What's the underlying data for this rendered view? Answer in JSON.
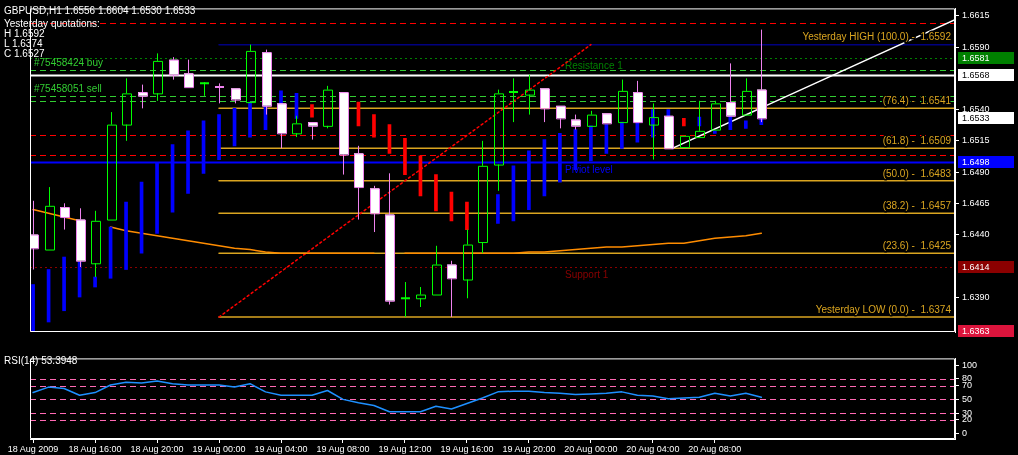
{
  "chart_data": [
    {
      "type": "candlestick",
      "title": "GBPUSD,H1  1.6556 1.6604 1.6530 1.6533",
      "x": [
        "2009-08-18T12:00",
        "2009-08-18T13:00",
        "2009-08-18T14:00",
        "2009-08-18T15:00",
        "2009-08-18T16:00",
        "2009-08-18T17:00",
        "2009-08-18T18:00",
        "2009-08-18T19:00",
        "2009-08-18T20:00",
        "2009-08-18T21:00",
        "2009-08-18T22:00",
        "2009-08-18T23:00",
        "2009-08-19T00:00",
        "2009-08-19T01:00",
        "2009-08-19T02:00",
        "2009-08-19T03:00",
        "2009-08-19T04:00",
        "2009-08-19T05:00",
        "2009-08-19T06:00",
        "2009-08-19T07:00",
        "2009-08-19T08:00",
        "2009-08-19T09:00",
        "2009-08-19T10:00",
        "2009-08-19T11:00",
        "2009-08-19T12:00",
        "2009-08-19T13:00",
        "2009-08-19T14:00",
        "2009-08-19T15:00",
        "2009-08-19T16:00",
        "2009-08-19T17:00",
        "2009-08-19T18:00",
        "2009-08-19T19:00",
        "2009-08-19T20:00",
        "2009-08-19T21:00",
        "2009-08-19T22:00",
        "2009-08-19T23:00",
        "2009-08-20T00:00",
        "2009-08-20T01:00",
        "2009-08-20T02:00",
        "2009-08-20T03:00",
        "2009-08-20T04:00",
        "2009-08-20T05:00",
        "2009-08-20T06:00",
        "2009-08-20T07:00",
        "2009-08-20T08:00",
        "2009-08-20T09:00",
        "2009-08-20T10:00",
        "2009-08-20T11:00"
      ],
      "ohlc": [
        [
          1.644,
          1.6467,
          1.6412,
          1.6429
        ],
        [
          1.6428,
          1.6478,
          1.6428,
          1.6463
        ],
        [
          1.6462,
          1.6465,
          1.6444,
          1.6454
        ],
        [
          1.6452,
          1.6461,
          1.6414,
          1.6419
        ],
        [
          1.6417,
          1.6459,
          1.6406,
          1.6451
        ],
        [
          1.6452,
          1.6538,
          1.6452,
          1.6528
        ],
        [
          1.6528,
          1.6565,
          1.6515,
          1.6553
        ],
        [
          1.6554,
          1.656,
          1.6541,
          1.6551
        ],
        [
          1.6553,
          1.6585,
          1.6547,
          1.6579
        ],
        [
          1.658,
          1.6582,
          1.6564,
          1.6568
        ],
        [
          1.6569,
          1.658,
          1.6558,
          1.6558
        ],
        [
          1.6561,
          1.6562,
          1.6551,
          1.6561
        ],
        [
          1.6558,
          1.6561,
          1.6545,
          1.6558
        ],
        [
          1.6557,
          1.6557,
          1.6545,
          1.6548
        ],
        [
          1.6546,
          1.6592,
          1.6546,
          1.6587
        ],
        [
          1.6586,
          1.6588,
          1.6536,
          1.6543
        ],
        [
          1.6545,
          1.6545,
          1.6509,
          1.6521
        ],
        [
          1.6521,
          1.6535,
          1.6518,
          1.6529
        ],
        [
          1.653,
          1.653,
          1.6516,
          1.6527
        ],
        [
          1.6527,
          1.6559,
          1.6525,
          1.6556
        ],
        [
          1.6554,
          1.6554,
          1.6488,
          1.6504
        ],
        [
          1.6505,
          1.6511,
          1.6452,
          1.6478
        ],
        [
          1.6477,
          1.6479,
          1.6442,
          1.6457
        ],
        [
          1.6456,
          1.6489,
          1.6384,
          1.6387
        ],
        [
          1.6389,
          1.6402,
          1.6374,
          1.6389
        ],
        [
          1.6389,
          1.6398,
          1.6382,
          1.6392
        ],
        [
          1.6392,
          1.6431,
          1.6392,
          1.6416
        ],
        [
          1.6416,
          1.6419,
          1.6374,
          1.6405
        ],
        [
          1.6404,
          1.6444,
          1.6389,
          1.6432
        ],
        [
          1.6434,
          1.6515,
          1.6425,
          1.6495
        ],
        [
          1.6496,
          1.6556,
          1.6475,
          1.6553
        ],
        [
          1.6554,
          1.6565,
          1.653,
          1.6554
        ],
        [
          1.6552,
          1.6568,
          1.6536,
          1.6556
        ],
        [
          1.6557,
          1.6557,
          1.653,
          1.6541
        ],
        [
          1.6543,
          1.6543,
          1.6525,
          1.6533
        ],
        [
          1.6532,
          1.6536,
          1.6524,
          1.6527
        ],
        [
          1.6527,
          1.6539,
          1.6527,
          1.6536
        ],
        [
          1.6537,
          1.6537,
          1.6529,
          1.6529
        ],
        [
          1.653,
          1.6564,
          1.653,
          1.6555
        ],
        [
          1.6554,
          1.6563,
          1.653,
          1.653
        ],
        [
          1.6528,
          1.6545,
          1.65,
          1.6534
        ],
        [
          1.6535,
          1.6535,
          1.6509,
          1.6509
        ],
        [
          1.651,
          1.6519,
          1.651,
          1.6519
        ],
        [
          1.6518,
          1.6547,
          1.6518,
          1.6523
        ],
        [
          1.6524,
          1.6547,
          1.6524,
          1.6545
        ],
        [
          1.6546,
          1.6577,
          1.6535,
          1.6535
        ],
        [
          1.6536,
          1.6565,
          1.6536,
          1.6555
        ],
        [
          1.6556,
          1.6604,
          1.653,
          1.6533
        ]
      ],
      "colors": [
        "#ffffff",
        "#00ff00",
        "#ffffff",
        "#ffffff",
        "#00ff00",
        "#00ff00",
        "#00ff00",
        "#ffffff",
        "#00ff00",
        "#ffffff",
        "#ffffff",
        "#00ff00",
        "#ee82ee",
        "#ffffff",
        "#00ff00",
        "#ffffff",
        "#ffffff",
        "#00ff00",
        "#ffffff",
        "#00ff00",
        "#ffffff",
        "#ffffff",
        "#ffffff",
        "#ffffff",
        "#00ff00",
        "#00ff00",
        "#00ff00",
        "#ffffff",
        "#00ff00",
        "#00ff00",
        "#00ff00",
        "#00ff00",
        "#00ff00",
        "#ffffff",
        "#ffffff",
        "#ffffff",
        "#00ff00",
        "#ffffff",
        "#00ff00",
        "#ffffff",
        "#00ff00",
        "#ffffff",
        "#00ff00",
        "#00ff00",
        "#00ff00",
        "#ffffff",
        "#00ff00",
        "#ffffff"
      ],
      "series": [
        {
          "type": "bar",
          "color": "#0000ff",
          "base": [
            1.6363,
            1.637,
            1.6379,
            1.639,
            1.6398,
            1.6405,
            1.6412,
            1.6425,
            1.6441,
            1.6458,
            1.6473,
            1.6489,
            1.65,
            1.6511,
            1.6518,
            1.6524,
            1.6535,
            1.6533,
            null,
            null,
            null,
            null,
            null,
            null,
            null,
            null,
            null,
            null,
            null,
            null,
            1.6449,
            1.6451,
            1.646,
            1.6471,
            1.6482,
            1.6492,
            1.6499,
            1.6505,
            1.6509,
            1.6514,
            1.6518,
            1.6535,
            null,
            1.6527,
            1.6521,
            1.6524,
            1.6525,
            1.6528
          ],
          "values": [
            0.0037,
            0.0042,
            0.0043,
            0.0028,
            0.0008,
            0.0041,
            0.0054,
            0.0057,
            0.0056,
            0.0054,
            0.005,
            0.0042,
            0.0036,
            0.003,
            0.0028,
            0.0019,
            0.002,
            0.002,
            null,
            null,
            null,
            null,
            null,
            null,
            null,
            null,
            null,
            null,
            null,
            null,
            0.0023,
            0.0044,
            0.0047,
            0.0045,
            0.0039,
            0.0032,
            0.0028,
            0.0023,
            0.0021,
            0.0016,
            0.0022,
            0.0005,
            null,
            0.0007,
            0.0002,
            0.0011,
            0.0006,
            0.0005
          ]
        },
        {
          "type": "bar",
          "color": "#ff0000",
          "base": [
            null,
            null,
            null,
            null,
            null,
            null,
            null,
            null,
            null,
            null,
            null,
            null,
            null,
            null,
            null,
            null,
            null,
            null,
            1.6534,
            null,
            null,
            1.6527,
            1.6518,
            1.6505,
            1.6488,
            1.6471,
            1.6459,
            1.6451,
            1.6444,
            null,
            null,
            null,
            null,
            null,
            null,
            null,
            null,
            null,
            null,
            null,
            null,
            null,
            1.6527,
            null,
            null,
            null,
            null,
            null
          ],
          "values": [
            null,
            null,
            null,
            null,
            null,
            null,
            null,
            null,
            null,
            null,
            null,
            null,
            null,
            null,
            null,
            null,
            null,
            null,
            0.001,
            null,
            null,
            0.0019,
            0.0018,
            0.0023,
            0.0029,
            0.0032,
            0.0029,
            0.0023,
            0.0022,
            null,
            null,
            null,
            null,
            null,
            null,
            null,
            null,
            null,
            null,
            null,
            null,
            null,
            0.0006,
            null,
            null,
            null,
            null,
            null
          ]
        },
        {
          "type": "line",
          "color": "#ff8c00",
          "values": [
            1.646,
            1.6457,
            1.6454,
            1.6451,
            null,
            1.6446,
            1.6443,
            1.6441,
            1.6439,
            1.6437,
            1.6435,
            1.6433,
            1.6431,
            1.6429,
            1.6428,
            1.6426,
            1.6425,
            1.6425,
            1.6425,
            1.6425,
            1.6425,
            1.6425,
            1.6425,
            null,
            1.6425,
            1.6425,
            1.6425,
            1.6425,
            1.6425,
            1.6425,
            1.6425,
            1.6425,
            1.6426,
            1.6426,
            1.6427,
            1.6428,
            1.6429,
            1.643,
            1.643,
            1.6431,
            1.6432,
            1.6433,
            1.6433,
            1.6435,
            1.6437,
            1.6438,
            1.6439,
            1.6441
          ]
        },
        {
          "type": "line",
          "color": "#ffffff",
          "x": [
            "2009-08-20T05:15",
            "2009-08-20T23:30"
          ],
          "values": [
            1.6509,
            1.6612
          ]
        },
        {
          "type": "line",
          "color": "#ff0000",
          "line_style": "dotted",
          "x": [
            "2009-08-19T00:00",
            "2009-08-20T00:00"
          ],
          "values": [
            1.6374,
            1.6592
          ]
        },
        {
          "type": "line",
          "name": "Yesterday HIGH (100.0) -  1.6592",
          "color": "#000080",
          "x": [
            "2009-08-19T00:00",
            "2009-08-20T23:30"
          ],
          "values": [
            1.6592,
            1.6592
          ]
        },
        {
          "type": "line",
          "name": "(76.4) -  1.6541",
          "color": "#daa520",
          "x": [
            "2009-08-19T00:00",
            "2009-08-20T23:30"
          ],
          "values": [
            1.6541,
            1.6541
          ]
        },
        {
          "type": "line",
          "name": "(61.8) -  1.6509",
          "color": "#daa520",
          "x": [
            "2009-08-19T00:00",
            "2009-08-20T23:30"
          ],
          "values": [
            1.6509,
            1.6509
          ]
        },
        {
          "type": "line",
          "name": "(50.0) -  1.6483",
          "color": "#daa520",
          "x": [
            "2009-08-19T00:00",
            "2009-08-20T23:30"
          ],
          "values": [
            1.6483,
            1.6483
          ]
        },
        {
          "type": "line",
          "name": "(38.2) -  1.6457",
          "color": "#daa520",
          "x": [
            "2009-08-19T00:00",
            "2009-08-20T23:30"
          ],
          "values": [
            1.6457,
            1.6457
          ]
        },
        {
          "type": "line",
          "name": "(23.6) -  1.6425",
          "color": "#daa520",
          "x": [
            "2009-08-19T00:00",
            "2009-08-20T23:30"
          ],
          "values": [
            1.6425,
            1.6425
          ]
        },
        {
          "type": "line",
          "name": "Yesterday LOW (0.0) -  1.6374",
          "color": "#daa520",
          "x": [
            "2009-08-19T00:00",
            "2009-08-20T23:30"
          ],
          "values": [
            1.6374,
            1.6374
          ]
        }
      ],
      "ref_lines": [
        {
          "axis": "y",
          "value": 1.6609,
          "color": "#ff0000",
          "line_style": "dashed"
        },
        {
          "axis": "y",
          "value": 1.6581,
          "label": "Resistance 1",
          "color": "#008000",
          "line_style": "dotted"
        },
        {
          "axis": "y",
          "value": 1.6572,
          "label": "#75458424 buy",
          "color": "#32cd32",
          "line_style": "dashed"
        },
        {
          "axis": "y",
          "value": 1.6568,
          "color": "#ffffff",
          "line_style": "solid"
        },
        {
          "axis": "y",
          "value": 1.6551,
          "label": "#75458051 sell",
          "color": "#32cd32",
          "line_style": "dashed"
        },
        {
          "axis": "y",
          "value": 1.6547,
          "color": "#32cd32",
          "line_style": "dashed"
        },
        {
          "axis": "y",
          "value": 1.652,
          "color": "#ff0000",
          "line_style": "dashed"
        },
        {
          "axis": "y",
          "value": 1.6504,
          "color": "#ff0000",
          "line_style": "dashed"
        },
        {
          "axis": "y",
          "value": 1.6498,
          "label": "Piviot level",
          "color": "#0000ff",
          "line_style": "solid"
        },
        {
          "axis": "y",
          "value": 1.6414,
          "label": "Support 1",
          "color": "#8b0000",
          "line_style": "dotted"
        },
        {
          "axis": "y",
          "value": 1.6363,
          "color": "#dc143c",
          "line_style": "dashed"
        }
      ],
      "annotations": [
        "Yesterday quotations:",
        "H 1.6592",
        "L 1.6374",
        "C 1.6527"
      ],
      "xlim": [
        "2009-08-18T11:48",
        "2009-08-20T23:30"
      ],
      "ylim": [
        1.6362,
        1.6621
      ],
      "yticks": [
        1.6615,
        {
          "value": 1.659,
          "label": "1.6590"
        },
        {
          "value": 1.654,
          "label": "1.6540"
        },
        1.6515,
        {
          "value": 1.649,
          "label": "1.6490"
        },
        1.6465,
        {
          "value": 1.644,
          "label": "1.6440"
        },
        {
          "value": 1.639,
          "label": "1.6390"
        }
      ],
      "y2lim": [
        1.6362,
        1.6621
      ],
      "y2ticks": [
        1.6581,
        1.6568,
        1.6533,
        1.6498,
        1.6414,
        1.6363
      ],
      "tick_labels": "y",
      "legend": false,
      "grid": false
    },
    {
      "type": "line",
      "title": "RSI(14) 53.3948",
      "color": "#1e90ff",
      "x": [
        "2009-08-18T12:00",
        "2009-08-18T13:00",
        "2009-08-18T14:00",
        "2009-08-18T15:00",
        "2009-08-18T16:00",
        "2009-08-18T17:00",
        "2009-08-18T18:00",
        "2009-08-18T19:00",
        "2009-08-18T20:00",
        "2009-08-18T21:00",
        "2009-08-18T22:00",
        "2009-08-18T23:00",
        "2009-08-19T00:00",
        "2009-08-19T01:00",
        "2009-08-19T02:00",
        "2009-08-19T03:00",
        "2009-08-19T04:00",
        "2009-08-19T05:00",
        "2009-08-19T06:00",
        "2009-08-19T07:00",
        "2009-08-19T08:00",
        "2009-08-19T09:00",
        "2009-08-19T10:00",
        "2009-08-19T11:00",
        "2009-08-19T12:00",
        "2009-08-19T13:00",
        "2009-08-19T14:00",
        "2009-08-19T15:00",
        "2009-08-19T16:00",
        "2009-08-19T17:00",
        "2009-08-19T18:00",
        "2009-08-19T19:00",
        "2009-08-19T20:00",
        "2009-08-19T21:00",
        "2009-08-19T22:00",
        "2009-08-19T23:00",
        "2009-08-20T00:00",
        "2009-08-20T01:00",
        "2009-08-20T02:00",
        "2009-08-20T03:00",
        "2009-08-20T04:00",
        "2009-08-20T05:00",
        "2009-08-20T06:00",
        "2009-08-20T07:00",
        "2009-08-20T08:00",
        "2009-08-20T09:00",
        "2009-08-20T10:00",
        "2009-08-20T11:00"
      ],
      "values": [
        60,
        68,
        66,
        56,
        60,
        71,
        75,
        74,
        77,
        73,
        71,
        71,
        71,
        68,
        73,
        61,
        56,
        56,
        56,
        63,
        50,
        45,
        41,
        32,
        32,
        32,
        40,
        36,
        44,
        52,
        61,
        62,
        62,
        60,
        59,
        57,
        58,
        59,
        61,
        56,
        55,
        51,
        52,
        53,
        59,
        55,
        59,
        53
      ],
      "ref_lines": [
        {
          "axis": "y",
          "value": 80,
          "color": "#ff69b4",
          "line_style": "dashed"
        },
        {
          "axis": "y",
          "value": 70,
          "color": "#ff69b4",
          "line_style": "dashed"
        },
        {
          "axis": "y",
          "value": 50,
          "color": "#ff69b4",
          "line_style": "dashed"
        },
        {
          "axis": "y",
          "value": 30,
          "color": "#ff69b4",
          "line_style": "dashed"
        },
        {
          "axis": "y",
          "value": 20,
          "color": "#ff69b4",
          "line_style": "dashed"
        }
      ],
      "xlim": [
        "2009-08-18T11:48",
        "2009-08-20T23:30"
      ],
      "ylim": [
        -8,
        110
      ],
      "xticks": [
        {
          "value": "2009-08-18T12:00",
          "label": "18 Aug 2009"
        },
        {
          "value": "2009-08-18T16:00",
          "label": "18 Aug 16:00"
        },
        {
          "value": "2009-08-18T20:00",
          "label": "18 Aug 20:00"
        },
        {
          "value": "2009-08-19T00:00",
          "label": "19 Aug 00:00"
        },
        {
          "value": "2009-08-19T04:00",
          "label": "19 Aug 04:00"
        },
        {
          "value": "2009-08-19T08:00",
          "label": "19 Aug 08:00"
        },
        {
          "value": "2009-08-19T12:00",
          "label": "19 Aug 12:00"
        },
        {
          "value": "2009-08-19T16:00",
          "label": "19 Aug 16:00"
        },
        {
          "value": "2009-08-19T20:00",
          "label": "19 Aug 20:00"
        },
        {
          "value": "2009-08-20T00:00",
          "label": "20 Aug 00:00"
        },
        {
          "value": "2009-08-20T04:00",
          "label": "20 Aug 04:00"
        },
        {
          "value": "2009-08-20T08:00",
          "label": "20 Aug 08:00"
        }
      ],
      "yticks": [
        100,
        80,
        70,
        50,
        30,
        20,
        0
      ],
      "legend": false,
      "grid": false
    }
  ]
}
